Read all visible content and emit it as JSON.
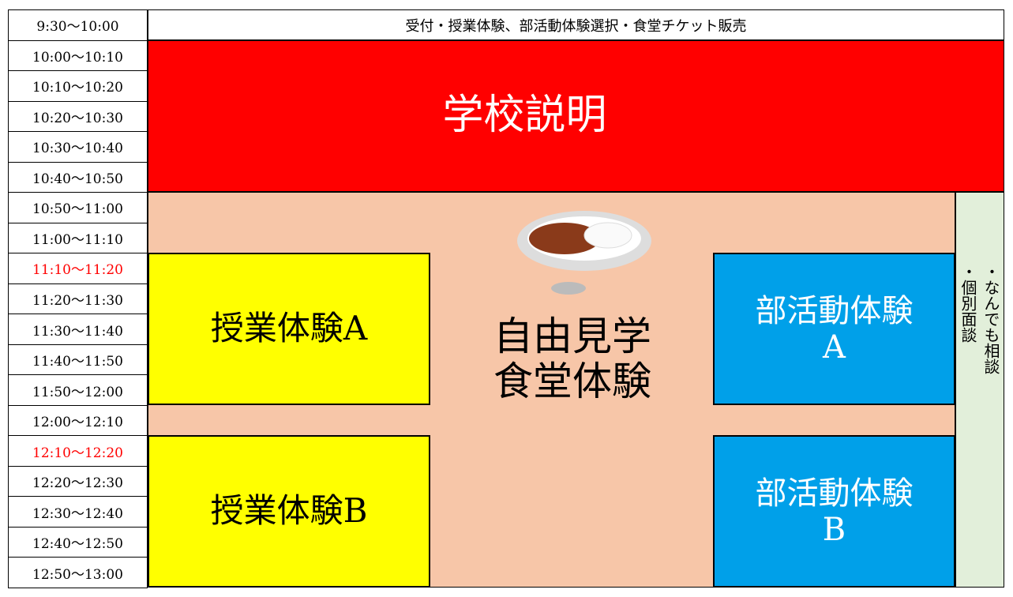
{
  "time_slots": [
    {
      "label": "9:30〜10:00",
      "color": "#000000"
    },
    {
      "label": "10:00〜10:10",
      "color": "#000000"
    },
    {
      "label": "10:10〜10:20",
      "color": "#000000"
    },
    {
      "label": "10:20〜10:30",
      "color": "#000000"
    },
    {
      "label": "10:30〜10:40",
      "color": "#000000"
    },
    {
      "label": "10:40〜10:50",
      "color": "#000000"
    },
    {
      "label": "10:50〜11:00",
      "color": "#000000"
    },
    {
      "label": "11:00〜11:10",
      "color": "#000000"
    },
    {
      "label": "11:10〜11:20",
      "color": "#ff0000"
    },
    {
      "label": "11:20〜11:30",
      "color": "#000000"
    },
    {
      "label": "11:30〜11:40",
      "color": "#000000"
    },
    {
      "label": "11:40〜11:50",
      "color": "#000000"
    },
    {
      "label": "11:50〜12:00",
      "color": "#000000"
    },
    {
      "label": "12:00〜12:10",
      "color": "#000000"
    },
    {
      "label": "12:10〜12:20",
      "color": "#ff0000"
    },
    {
      "label": "12:20〜12:30",
      "color": "#000000"
    },
    {
      "label": "12:30〜12:40",
      "color": "#000000"
    },
    {
      "label": "12:40〜12:50",
      "color": "#000000"
    },
    {
      "label": "12:50〜13:00",
      "color": "#000000"
    }
  ],
  "reception": "受付・授業体験、部活動体験選択・食堂チケット販売",
  "school_briefing": "学校説明",
  "free_tour": [
    "自由見学",
    "食堂体験"
  ],
  "class_a": "授業体験A",
  "class_b": "授業体験B",
  "club_a": [
    "部活動体験",
    "A"
  ],
  "club_b": [
    "部活動体験",
    "B"
  ],
  "consultation": [
    "・なんでも相談",
    "・個別面談"
  ]
}
